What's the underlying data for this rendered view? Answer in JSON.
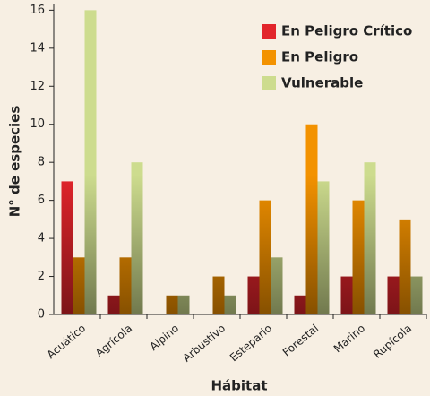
{
  "chart_data": {
    "type": "bar",
    "x_label": "Hábitat",
    "y_label": "N° de especies",
    "categories": [
      "Acuático",
      "Agrícola",
      "Alpino",
      "Arbustivo",
      "Estepario",
      "Forestal",
      "Marino",
      "Rupícola"
    ],
    "series": [
      {
        "name": "En Peligro Crítico",
        "color": "#e2252b",
        "values": [
          7,
          1,
          0,
          0,
          2,
          1,
          2,
          2
        ]
      },
      {
        "name": "En Peligro",
        "color": "#f39200",
        "values": [
          3,
          3,
          1,
          2,
          6,
          10,
          6,
          5
        ]
      },
      {
        "name": "Vulnerable",
        "color": "#cddc8e",
        "values": [
          16,
          8,
          1,
          1,
          3,
          7,
          8,
          2
        ]
      }
    ],
    "ylim": [
      0,
      16.3
    ],
    "yticks": [
      0,
      2,
      4,
      6,
      8,
      10,
      12,
      14,
      16
    ],
    "legend": "upper right"
  }
}
